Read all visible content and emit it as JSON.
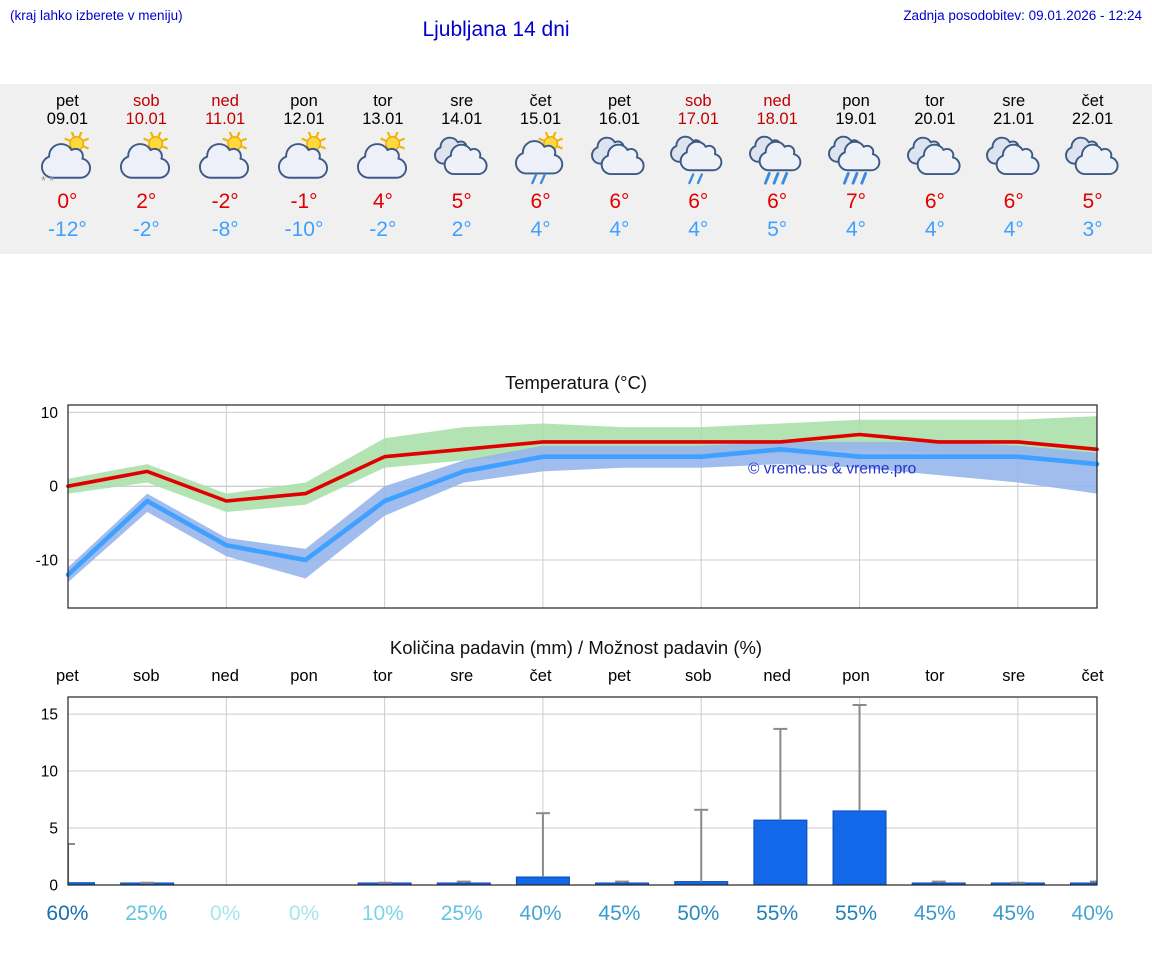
{
  "header": {
    "menu_note": "(kraj lahko izberete v meniju)",
    "title": "Ljubljana 14 dni",
    "last_update": "Zadnja posodobitev: 09.01.2026 - 12:24"
  },
  "forecast_days": [
    {
      "day": "pet",
      "date": "09.01",
      "weekend": false,
      "icon": "sun-cloud-snow",
      "tmax": "0°",
      "tmin": "-12°"
    },
    {
      "day": "sob",
      "date": "10.01",
      "weekend": true,
      "icon": "sun-cloud",
      "tmax": "2°",
      "tmin": "-2°"
    },
    {
      "day": "ned",
      "date": "11.01",
      "weekend": true,
      "icon": "sun-cloud",
      "tmax": "-2°",
      "tmin": "-8°"
    },
    {
      "day": "pon",
      "date": "12.01",
      "weekend": false,
      "icon": "sun-cloud",
      "tmax": "-1°",
      "tmin": "-10°"
    },
    {
      "day": "tor",
      "date": "13.01",
      "weekend": false,
      "icon": "sun-cloud",
      "tmax": "4°",
      "tmin": "-2°"
    },
    {
      "day": "sre",
      "date": "14.01",
      "weekend": false,
      "icon": "clouds",
      "tmax": "5°",
      "tmin": "2°"
    },
    {
      "day": "čet",
      "date": "15.01",
      "weekend": false,
      "icon": "sun-cloud-rain",
      "tmax": "6°",
      "tmin": "4°"
    },
    {
      "day": "pet",
      "date": "16.01",
      "weekend": false,
      "icon": "clouds",
      "tmax": "6°",
      "tmin": "4°"
    },
    {
      "day": "sob",
      "date": "17.01",
      "weekend": true,
      "icon": "clouds-rain",
      "tmax": "6°",
      "tmin": "4°"
    },
    {
      "day": "ned",
      "date": "18.01",
      "weekend": true,
      "icon": "clouds-heavy-rain",
      "tmax": "6°",
      "tmin": "5°"
    },
    {
      "day": "pon",
      "date": "19.01",
      "weekend": false,
      "icon": "clouds-heavy-rain",
      "tmax": "7°",
      "tmin": "4°"
    },
    {
      "day": "tor",
      "date": "20.01",
      "weekend": false,
      "icon": "clouds",
      "tmax": "6°",
      "tmin": "4°"
    },
    {
      "day": "sre",
      "date": "21.01",
      "weekend": false,
      "icon": "clouds",
      "tmax": "6°",
      "tmin": "4°"
    },
    {
      "day": "čet",
      "date": "22.01",
      "weekend": false,
      "icon": "clouds",
      "tmax": "5°",
      "tmin": "3°"
    }
  ],
  "chart_data": [
    {
      "type": "line",
      "title": "Temperatura (°C)",
      "categories": [
        "pet",
        "sob",
        "ned",
        "pon",
        "tor",
        "sre",
        "čet",
        "pet",
        "sob",
        "ned",
        "pon",
        "tor",
        "sre",
        "čet"
      ],
      "ylim": [
        -16.5,
        11
      ],
      "yticks": [
        10,
        0,
        -10
      ],
      "grid": true,
      "legend": "none",
      "watermark": "© vreme.us & vreme.pro",
      "watermark_color": "#2233cc",
      "series": [
        {
          "name": "max temperature",
          "color": "#e00000",
          "values": [
            0,
            2,
            -2,
            -1,
            4,
            5,
            6,
            6,
            6,
            6,
            7,
            6,
            6,
            5
          ]
        },
        {
          "name": "min temperature",
          "color": "#3fa0ff",
          "values": [
            -12,
            -2,
            -8,
            -10,
            -2,
            2,
            4,
            4,
            4,
            5,
            4,
            4,
            4,
            3
          ]
        }
      ],
      "bands": [
        {
          "name": "max temperature range",
          "color": "#a9dfa9",
          "upper": [
            1,
            3,
            -1,
            0.5,
            6.5,
            8,
            8.5,
            8,
            8,
            8.5,
            9,
            9,
            9,
            9.5
          ],
          "lower": [
            -1,
            0.5,
            -3.5,
            -2.5,
            2.5,
            3.5,
            4,
            4,
            4,
            4.5,
            5,
            4.5,
            4,
            3
          ]
        },
        {
          "name": "min temperature range",
          "color": "#94b4ec",
          "upper": [
            -11,
            -1,
            -7,
            -8.5,
            0,
            3.5,
            5.5,
            5.5,
            5.5,
            6,
            6,
            6,
            5.5,
            4.5
          ],
          "lower": [
            -13,
            -3.5,
            -9.5,
            -12.5,
            -4,
            0.5,
            2,
            2.5,
            2.5,
            3,
            2.5,
            1.5,
            0.5,
            -1
          ]
        }
      ]
    },
    {
      "type": "bar",
      "title": "Količina padavin (mm) / Možnost padavin (%)",
      "categories": [
        "pet",
        "sob",
        "ned",
        "pon",
        "tor",
        "sre",
        "čet",
        "pet",
        "sob",
        "ned",
        "pon",
        "tor",
        "sre",
        "čet"
      ],
      "ylim": [
        0,
        16.5
      ],
      "yticks": [
        0,
        5,
        10,
        15
      ],
      "bar_color": "#1368ea",
      "bar_edge_color": "#0a4ab8",
      "whisker_color": "#8a8a8a",
      "precip_mm": [
        0.2,
        0.1,
        0,
        0,
        0.1,
        0.1,
        0.7,
        0.1,
        0.3,
        5.7,
        6.5,
        0.1,
        0.1,
        0.1
      ],
      "precip_max_mm": [
        3.6,
        0.2,
        0,
        0,
        0.2,
        0.3,
        6.3,
        0.3,
        6.6,
        13.7,
        15.8,
        0.3,
        0.2,
        0.3
      ],
      "probabilities": [
        {
          "label": "60%",
          "color": "#1a6fae"
        },
        {
          "label": "25%",
          "color": "#63c3e1"
        },
        {
          "label": "0%",
          "color": "#a5e6f0"
        },
        {
          "label": "0%",
          "color": "#a5e6f0"
        },
        {
          "label": "10%",
          "color": "#7fd4e8"
        },
        {
          "label": "25%",
          "color": "#63c3e1"
        },
        {
          "label": "40%",
          "color": "#48a5d4"
        },
        {
          "label": "45%",
          "color": "#3b9acd"
        },
        {
          "label": "50%",
          "color": "#2b8ac2"
        },
        {
          "label": "55%",
          "color": "#2380bb"
        },
        {
          "label": "55%",
          "color": "#2380bb"
        },
        {
          "label": "45%",
          "color": "#3b9acd"
        },
        {
          "label": "45%",
          "color": "#3b9acd"
        },
        {
          "label": "40%",
          "color": "#48a5d4"
        }
      ]
    }
  ]
}
